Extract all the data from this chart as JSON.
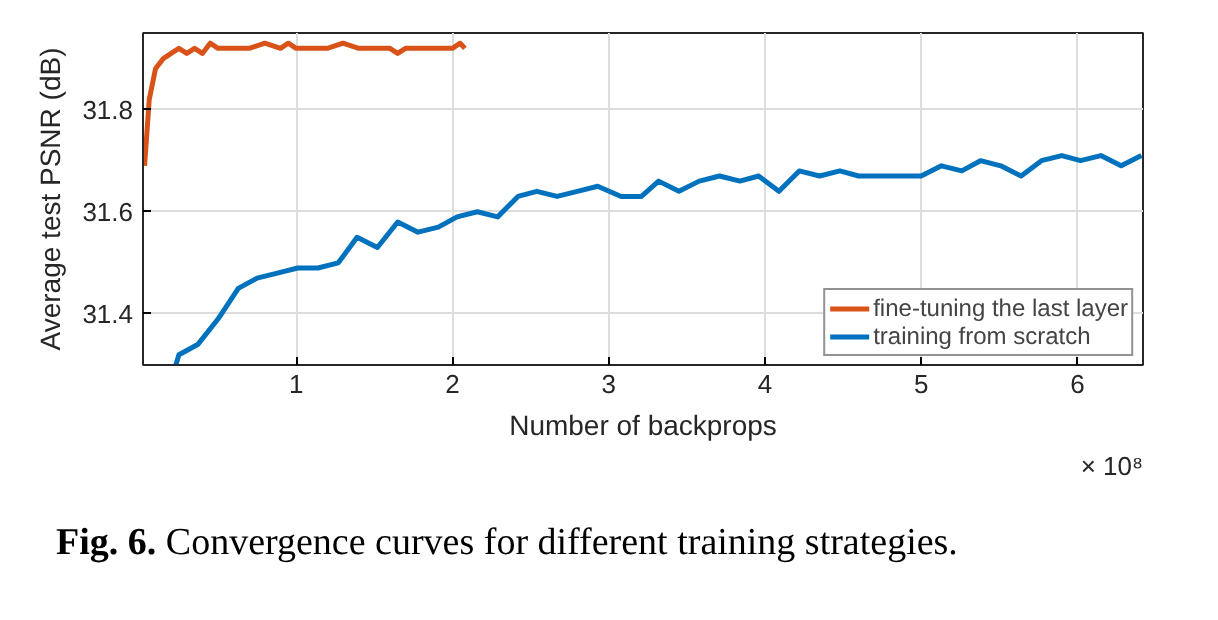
{
  "chart_data": {
    "type": "line",
    "xlabel": "Number of backprops",
    "ylabel": "Average test PSNR (dB)",
    "xlim": [
      0.02,
      6.42
    ],
    "ylim": [
      31.3,
      31.95
    ],
    "xticks": [
      1,
      2,
      3,
      4,
      5,
      6
    ],
    "yticks": [
      31.4,
      31.6,
      31.8
    ],
    "grid": true,
    "legend": "bottom right",
    "series": [
      {
        "name": "fine-tuning the last layer",
        "color": "#d95319",
        "x": [
          0.03,
          0.06,
          0.1,
          0.15,
          0.2,
          0.25,
          0.3,
          0.35,
          0.4,
          0.45,
          0.5,
          0.55,
          0.6,
          0.7,
          0.8,
          0.9,
          0.95,
          1.0,
          1.05,
          1.1,
          1.2,
          1.3,
          1.4,
          1.5,
          1.6,
          1.65,
          1.7,
          1.8,
          1.9,
          2.0,
          2.05,
          2.08
        ],
        "values": [
          31.69,
          31.82,
          31.88,
          31.9,
          31.91,
          31.92,
          31.91,
          31.92,
          31.91,
          31.93,
          31.92,
          31.92,
          31.92,
          31.92,
          31.93,
          31.92,
          31.93,
          31.92,
          31.92,
          31.92,
          31.92,
          31.93,
          31.92,
          31.92,
          31.92,
          31.91,
          31.92,
          31.92,
          31.92,
          31.92,
          31.93,
          31.92
        ]
      },
      {
        "name": "training from scratch",
        "color": "#0072bd",
        "x": [
          0.23,
          0.25,
          0.37,
          0.5,
          0.63,
          0.75,
          0.88,
          1.01,
          1.14,
          1.27,
          1.39,
          1.52,
          1.65,
          1.78,
          1.91,
          2.03,
          2.16,
          2.29,
          2.42,
          2.54,
          2.67,
          2.8,
          2.93,
          3.08,
          3.21,
          3.32,
          3.45,
          3.58,
          3.71,
          3.84,
          3.96,
          4.09,
          4.22,
          4.35,
          4.48,
          4.6,
          4.73,
          5.0,
          5.13,
          5.26,
          5.38,
          5.51,
          5.64,
          5.77,
          5.9,
          6.02,
          6.15,
          6.28,
          6.41
        ],
        "values": [
          31.3,
          31.32,
          31.34,
          31.39,
          31.45,
          31.47,
          31.48,
          31.49,
          31.49,
          31.5,
          31.55,
          31.53,
          31.58,
          31.56,
          31.57,
          31.59,
          31.6,
          31.59,
          31.63,
          31.64,
          31.63,
          31.64,
          31.65,
          31.63,
          31.63,
          31.66,
          31.64,
          31.66,
          31.67,
          31.66,
          31.67,
          31.64,
          31.68,
          31.67,
          31.68,
          31.67,
          31.67,
          31.67,
          31.69,
          31.68,
          31.7,
          31.69,
          31.67,
          31.7,
          31.71,
          31.7,
          31.71,
          31.69,
          31.71
        ]
      }
    ],
    "annotations": [
      "× 10⁸",
      "Fig. 6.",
      "Convergence curves for different training strategies."
    ]
  }
}
